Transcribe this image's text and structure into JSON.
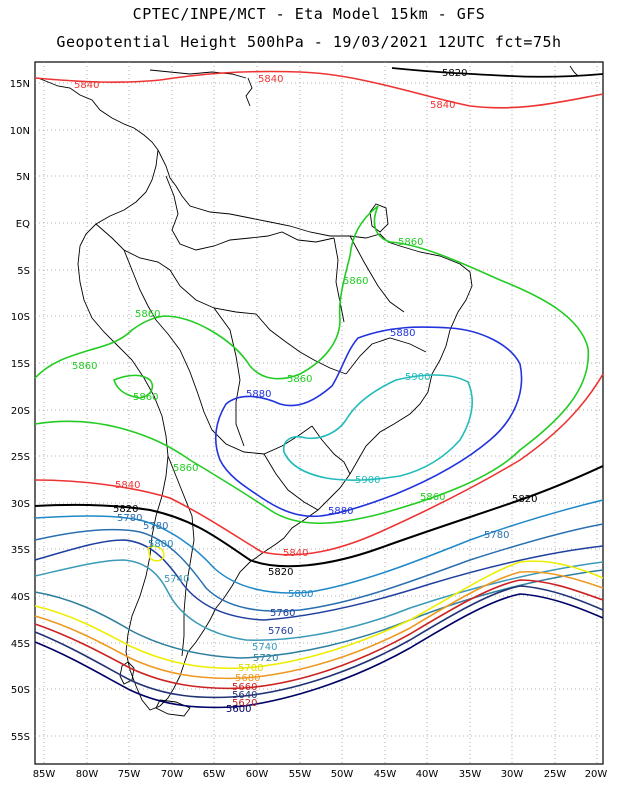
{
  "header": {
    "line1": "CPTEC/INPE/MCT -  Eta Model 15km - GFS",
    "line2": "Geopotential Height 500hPa - 19/03/2021 12UTC fct=75h"
  },
  "axes": {
    "lat_labels": [
      "15N",
      "10N",
      "5N",
      "EQ",
      "5S",
      "10S",
      "15S",
      "20S",
      "25S",
      "30S",
      "35S",
      "40S",
      "45S",
      "50S",
      "55S"
    ],
    "lon_labels": [
      "85W",
      "80W",
      "75W",
      "70W",
      "65W",
      "60W",
      "55W",
      "50W",
      "45W",
      "40W",
      "35W",
      "30W",
      "25W",
      "20W"
    ]
  },
  "colors": {
    "c5900": "#22bbbb",
    "c5880": "#2233dd",
    "c5860": "#22cc22",
    "c5840": "#ee3333",
    "c5820": "#000000",
    "c5800": "#1e88c8",
    "c5780": "#2a6fb0",
    "c5760": "#1f3f9f",
    "c5740": "#3a9ab8",
    "c5720": "#2f7f9f",
    "c5700": "#eeee00",
    "c5680": "#ee9922",
    "c5660": "#cc2222",
    "c5640": "#223377",
    "c5620": "#000066"
  },
  "contour_labels": {
    "l5840_n1": "5840",
    "l5840_n2": "5840",
    "l5840_n3": "5840",
    "l5820_n": "5820",
    "l5860_a": "5860",
    "l5860_b": "5860",
    "l5860_c": "5860",
    "l5860_d": "5860",
    "l5860_e": "5860",
    "l5860_f": "5860",
    "l5860_g": "5860",
    "l5860_h": "5860",
    "l5880_a": "5880",
    "l5880_b": "5880",
    "l5880_c": "5880",
    "l5900_a": "5900",
    "l5900_b": "5900",
    "l5840_s1": "5840",
    "l5840_s2": "5840",
    "l5820_s1": "5820",
    "l5820_s2": "5820",
    "l5820_s3": "5820",
    "l5800_a": "5800",
    "l5800_b": "5800",
    "l5780_a": "5780",
    "l5780_b": "5780",
    "l5780_c": "5780",
    "l5760_a": "5760",
    "l5760_b": "5760",
    "l5740_a": "5740",
    "l5740_b": "5740",
    "l5720": "5720",
    "l5700": "5700",
    "l5680": "5680",
    "l5660": "5660",
    "l5640": "5640",
    "l5620": "5620",
    "l5600": "5600"
  }
}
